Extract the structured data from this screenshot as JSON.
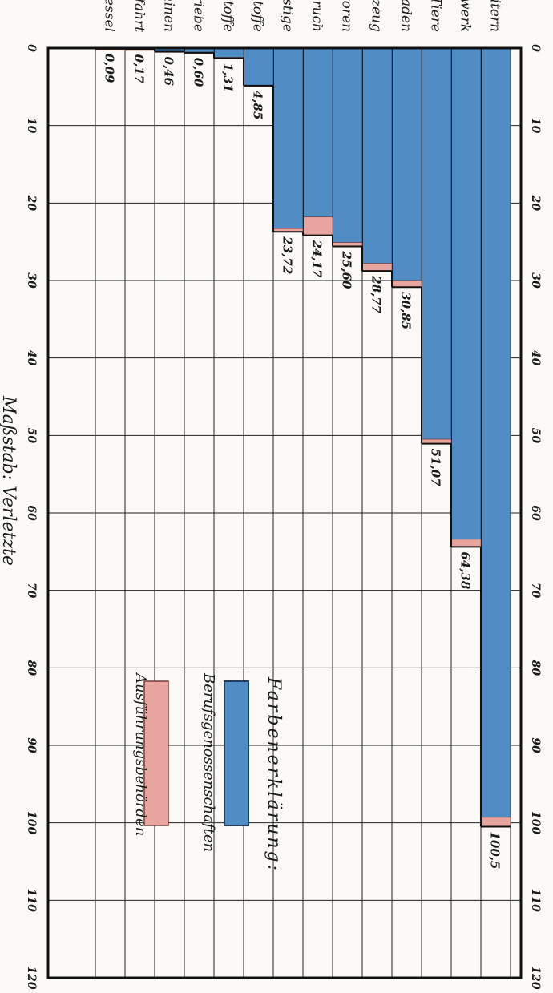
{
  "chart_data": {
    "type": "bar",
    "orientation": "horizontal",
    "xlabel": "Maßstab: Verletzte",
    "xlim": [
      0,
      120
    ],
    "xticks": [
      0,
      10,
      20,
      30,
      40,
      50,
      60,
      70,
      80,
      90,
      100,
      110,
      120
    ],
    "categories": [
      "Fall von Leitern",
      "Fuhrwerk",
      "Tiere",
      "Auf- und Abladen",
      "Handwerkzeug",
      "Motoren",
      "Zusammenbruch",
      "Sonstige",
      "Feuergefährliche Stoffe",
      "Sprengstoffe",
      "Eisenbahnbetriebe",
      "Hebemaschinen",
      "Schiffahrt",
      "Dampfkessel"
    ],
    "value_labels": [
      "100,5",
      "64,38",
      "51,07",
      "30,85",
      "28,77",
      "25,60",
      "24,17",
      "23,72",
      "4,85",
      "1,31",
      "0,60",
      "0,46",
      "0,17",
      "0,09"
    ],
    "series": [
      {
        "name": "Berufsgenossenschaften",
        "color": "#4f8dc4",
        "values": [
          99.3,
          63.4,
          50.5,
          30.0,
          27.8,
          25.1,
          21.8,
          23.3,
          4.8,
          1.2,
          0.55,
          0.4,
          0.15,
          0.08
        ]
      },
      {
        "name": "Ausführungsbehörden",
        "color": "#e8a5a0",
        "values": [
          1.2,
          0.98,
          0.57,
          0.85,
          0.97,
          0.5,
          2.37,
          0.42,
          0.05,
          0.11,
          0.05,
          0.06,
          0.02,
          0.01
        ]
      }
    ],
    "grid": true,
    "legend": {
      "title": "Farbenerklärung:",
      "placement": "bottom-right",
      "items": [
        "Berufsgenossenschaften",
        "Ausführungsbehörden"
      ]
    }
  }
}
